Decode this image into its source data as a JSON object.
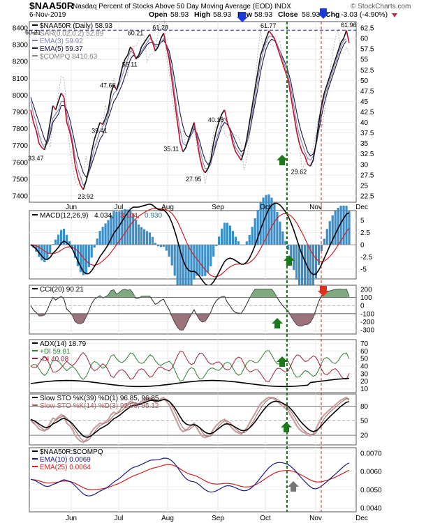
{
  "header": {
    "symbol": "$NAA50R",
    "description": "Nasdaq Percent of Stocks Above 50 Day Moving Average (EOD)  INDX",
    "source": "© StockCharts.com",
    "date": "6-Nov-2019",
    "open_label": "Open",
    "open": "58.93",
    "high_label": "High",
    "high": "58.93",
    "low_label": "Low",
    "low": "58.93",
    "close_label": "Close",
    "close": "58.93",
    "chg_label": "Chg",
    "chg": "-3.03 (-4.90%)"
  },
  "months": [
    "Jun",
    "Jul",
    "Aug",
    "Sep",
    "Oct",
    "Nov",
    "Dec"
  ],
  "chart_data": [
    {
      "type": "line",
      "panel": "price",
      "legend": [
        {
          "text": "$NAA50R (Daily) 58.93",
          "color": "#000000"
        },
        {
          "text": "SAR(0.02,0.2) 52.89",
          "color": "#7f7f7f"
        },
        {
          "text": "EMA(3) 59.92",
          "color": "#8080b0"
        },
        {
          "text": "EMA(5) 59.37",
          "color": "#1a1a40"
        },
        {
          "text": "$COMPQ 8410.63",
          "color": "#7f7f7f"
        }
      ],
      "y_ticks": [
        62.5,
        60.0,
        57.5,
        55.0,
        52.5,
        50.0,
        47.5,
        45.0,
        42.5,
        40.0,
        37.5,
        35.0,
        32.5,
        30.0,
        27.5,
        25.0,
        22.5
      ],
      "y_left_ticks": [
        8400,
        8300,
        8200,
        8100,
        8000,
        7900,
        7800,
        7700,
        7600,
        7500,
        7400
      ],
      "ylim": [
        21,
        64
      ],
      "series": [
        {
          "values": [
            43,
            40,
            38,
            35,
            34,
            33.5,
            36,
            40,
            44,
            43,
            45,
            47,
            46,
            40,
            38,
            35,
            30,
            27,
            25,
            24,
            26,
            29,
            33,
            36,
            38,
            40,
            39.5,
            41,
            43,
            47,
            49,
            47.7,
            50,
            53,
            55,
            56,
            58,
            57,
            55.1,
            56,
            58,
            59,
            60,
            61,
            59,
            57,
            58,
            60,
            61.3,
            58,
            55,
            50,
            45,
            40,
            35.1,
            33,
            34,
            36,
            38,
            40,
            36,
            32,
            29,
            28,
            29,
            31,
            35,
            38,
            40.2,
            42,
            43,
            40,
            38,
            35,
            33,
            32,
            31,
            33,
            36,
            40,
            44,
            48,
            52,
            56,
            58,
            60,
            61.8,
            61,
            60,
            58,
            56,
            54,
            52,
            50,
            46,
            42,
            38,
            35,
            33,
            32,
            30,
            29.6,
            31,
            35,
            40,
            44,
            47,
            49,
            51,
            53,
            55,
            57,
            59,
            60,
            61.9,
            58.9
          ]
        },
        {
          "values": [
            45,
            42,
            40,
            37,
            35,
            34,
            35,
            38,
            41,
            42,
            43,
            45,
            45,
            42,
            39,
            36,
            32,
            29,
            27,
            25,
            26,
            28,
            31,
            34,
            36,
            38,
            39,
            40,
            42,
            45,
            47,
            47.5,
            49,
            51,
            53,
            55,
            57,
            56.5,
            55.5,
            56,
            57,
            58,
            59,
            60,
            59.5,
            58,
            58,
            59,
            60,
            58.5,
            56,
            52,
            47,
            42,
            38,
            35,
            34.5,
            35.5,
            37,
            39,
            37,
            34,
            31,
            29,
            29,
            30,
            33,
            36,
            38,
            40,
            41,
            40,
            38,
            36,
            34,
            33,
            32,
            33,
            35,
            38,
            42,
            46,
            50,
            54,
            57,
            59,
            60.5,
            60.5,
            60,
            58.5,
            57,
            55,
            53,
            51,
            48,
            44,
            40,
            37,
            35,
            33,
            31.5,
            31,
            32,
            35,
            39,
            43,
            46,
            48,
            50,
            52,
            54,
            56,
            58,
            59.5,
            59.9
          ]
        },
        {
          "values": [
            46,
            44,
            42,
            40,
            38,
            36,
            35,
            37,
            40,
            41,
            42,
            44,
            44,
            43,
            41,
            38,
            35,
            32,
            30,
            28,
            27,
            28,
            30,
            32,
            34,
            36,
            37,
            39,
            41,
            43,
            45,
            46,
            47.5,
            49,
            51,
            53,
            55,
            56,
            55.5,
            55.5,
            56.5,
            57.5,
            58.5,
            59,
            59,
            58.5,
            58.5,
            59,
            59.5,
            58.5,
            57,
            54,
            50,
            46,
            42,
            39,
            37,
            36.5,
            37,
            38.5,
            37.5,
            35.5,
            33,
            31,
            30,
            30.5,
            32.5,
            35,
            37,
            39,
            40,
            39.5,
            38.5,
            37,
            35.5,
            34,
            33,
            33.5,
            35,
            37.5,
            41,
            44.5,
            48,
            52,
            55,
            57.5,
            59,
            59.8,
            59.5,
            58.5,
            57,
            55.5,
            54,
            52,
            49.5,
            46,
            42.5,
            39.5,
            37,
            35,
            33,
            32,
            32.5,
            34.5,
            38,
            41.5,
            44.5,
            47,
            49,
            51,
            53,
            55,
            57,
            58.5,
            59.4
          ]
        }
      ],
      "sar_values": [
        40,
        44,
        46,
        45,
        44,
        43,
        42,
        41,
        40,
        39,
        38,
        37,
        36,
        37,
        38,
        39,
        40,
        41,
        42,
        43,
        44,
        45,
        46,
        47,
        48,
        49,
        50,
        51,
        52,
        53,
        54,
        55,
        55.5,
        56,
        56.5,
        57,
        57.5,
        58,
        58.5,
        59,
        59.5,
        60,
        60.5,
        61,
        61.5,
        62,
        62.5,
        63,
        63.5,
        64,
        64,
        63,
        62,
        61,
        60,
        59,
        58,
        57,
        56,
        55,
        54,
        53,
        52,
        51,
        50,
        49,
        48,
        47,
        46,
        45,
        44,
        43,
        42,
        41,
        40,
        39,
        38,
        37,
        36,
        35,
        34,
        33,
        32,
        31,
        30,
        29,
        28,
        27,
        26,
        25,
        24,
        23,
        22,
        21,
        22,
        23,
        24,
        25,
        26,
        27,
        28,
        29,
        30,
        31,
        32,
        33,
        34,
        35,
        36,
        37,
        38,
        39,
        40,
        41,
        42,
        43,
        44,
        45
      ],
      "annotations": [
        {
          "text": "60.21",
          "i": 0,
          "v": 61.4
        },
        {
          "text": "33.47",
          "i": 1,
          "v": 31.5
        },
        {
          "text": "23.92",
          "i": 19,
          "v": 22.3
        },
        {
          "text": "47.66",
          "i": 27,
          "v": 48.8
        },
        {
          "text": "39.41",
          "i": 24,
          "v": 38.0
        },
        {
          "text": "60.21",
          "i": 37,
          "v": 61.3
        },
        {
          "text": "55.11",
          "i": 35,
          "v": 53.8
        },
        {
          "text": "61.28",
          "i": 46,
          "v": 62.6
        },
        {
          "text": "35.11",
          "i": 50,
          "v": 33.7
        },
        {
          "text": "27.95",
          "i": 58,
          "v": 26.5
        },
        {
          "text": "40.18",
          "i": 66,
          "v": 40.6
        },
        {
          "text": "61.77",
          "i": 85,
          "v": 63.0
        },
        {
          "text": "29.62",
          "i": 96,
          "v": 28.2
        },
        {
          "text": "61.96",
          "i": 114,
          "v": 63.2
        }
      ],
      "dashed_level": 61.96
    },
    {
      "type": "bar",
      "panel": "macd",
      "legend": [
        {
          "text": "MACD(12,26,9)",
          "color": "#000000"
        },
        {
          "text": "4.034,",
          "color": "#000000"
        },
        {
          "text": "3.104,",
          "color": "#d02020"
        },
        {
          "text": "0.930",
          "color": "#1f77b4"
        }
      ],
      "y_ticks": [
        5.0,
        2.5,
        0.0,
        -2.5,
        -5.0
      ],
      "ylim": [
        -7,
        7
      ]
    },
    {
      "type": "area",
      "panel": "cci",
      "legend": [
        {
          "text": "CCI(20) 90.21",
          "color": "#000000"
        }
      ],
      "y_ticks": [
        200,
        100,
        0,
        -100,
        -200,
        -300
      ],
      "ylim": [
        -350,
        250
      ]
    },
    {
      "type": "line",
      "panel": "adx",
      "legend": [
        {
          "text": "ADX(14) 18.79",
          "color": "#000000"
        },
        {
          "text": "+DI 59.81",
          "color": "#2e7d32"
        },
        {
          "text": "-DI 40.08",
          "color": "#a0203a"
        }
      ],
      "y_ticks": [
        70,
        60,
        50,
        40,
        30,
        20,
        10
      ],
      "ylim": [
        5,
        75
      ]
    },
    {
      "type": "line",
      "panel": "sto",
      "legend": [
        {
          "text": "Slow STO %K(39) %D(1) 96.85, 96.85",
          "color": "#000000"
        },
        {
          "text": "Slow STO %K(14) %D(3) 92.06, 95.12",
          "color": "#a06060"
        }
      ],
      "y_ticks": [
        80,
        50,
        20
      ],
      "ylim": [
        0,
        105
      ]
    },
    {
      "type": "line",
      "panel": "ratio",
      "legend": [
        {
          "text": "$NAA50R:$COMPQ",
          "color": "#000000"
        },
        {
          "text": "EMA(10) 0.0069",
          "color": "#1a1a80"
        },
        {
          "text": "EMA(25) 0.0064",
          "color": "#d02020"
        }
      ],
      "y_ticks": [
        0.007,
        0.006,
        0.005,
        0.004
      ],
      "y_tick_labels": [
        "0.0070",
        "0.0060",
        "0.0050",
        "0.0040"
      ],
      "ylim": [
        0.0038,
        0.0073
      ]
    }
  ]
}
